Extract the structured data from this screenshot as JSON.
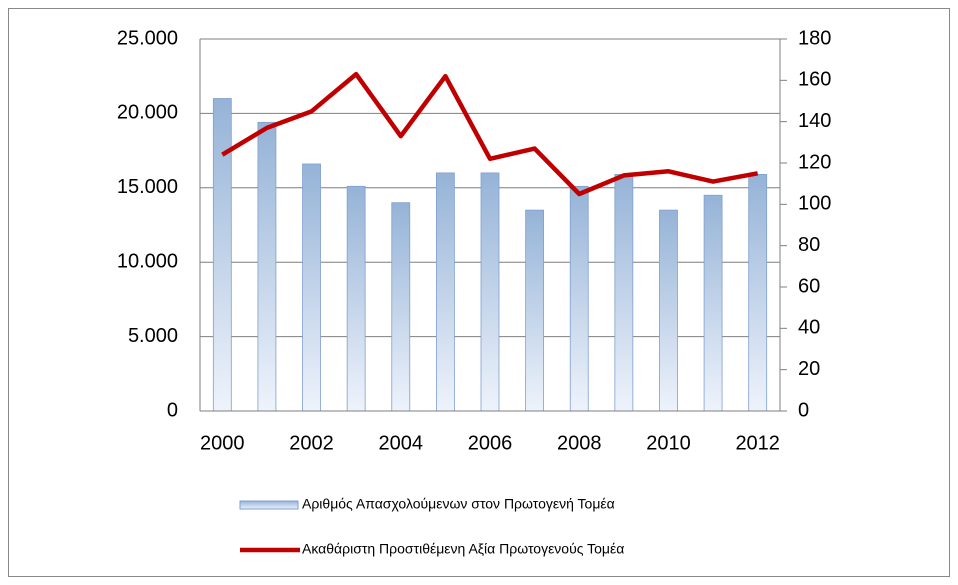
{
  "chart_data": {
    "type": "bar-line",
    "categories": [
      "2000",
      null,
      "2002",
      null,
      "2004",
      null,
      "2006",
      null,
      "2008",
      null,
      "2010",
      null,
      "2012"
    ],
    "series": [
      {
        "name": "Αριθμός Απασχολούμενων στον Πρωτογενή Τομέα",
        "type": "bar",
        "color": "#95b3d7",
        "values": [
          21000,
          19400,
          16600,
          15100,
          14000,
          16000,
          16000,
          13500,
          15100,
          15900,
          13500,
          14500,
          15900
        ]
      },
      {
        "name": "Ακαθάριστη Προστιθέμενη Αξία Πρωτογενούς Τομέα",
        "type": "line",
        "color": "#c00000",
        "axis": "y2",
        "values": [
          124,
          137,
          145,
          163,
          133,
          162,
          122,
          127,
          105,
          114,
          116,
          111,
          115
        ]
      }
    ],
    "ylim": [
      0,
      25000
    ],
    "yticks": [
      0,
      {
        "value": 5000,
        "label": "5.000"
      },
      {
        "value": 10000,
        "label": "10.000"
      },
      {
        "value": 15000,
        "label": "15.000"
      },
      {
        "value": 20000,
        "label": "20.000"
      },
      {
        "value": 25000,
        "label": "25.000"
      }
    ],
    "y2lim": [
      0,
      180
    ],
    "y2ticks": [
      0,
      20,
      40,
      60,
      80,
      100,
      120,
      140,
      160,
      180
    ],
    "grid": true,
    "legend": "bottom"
  }
}
